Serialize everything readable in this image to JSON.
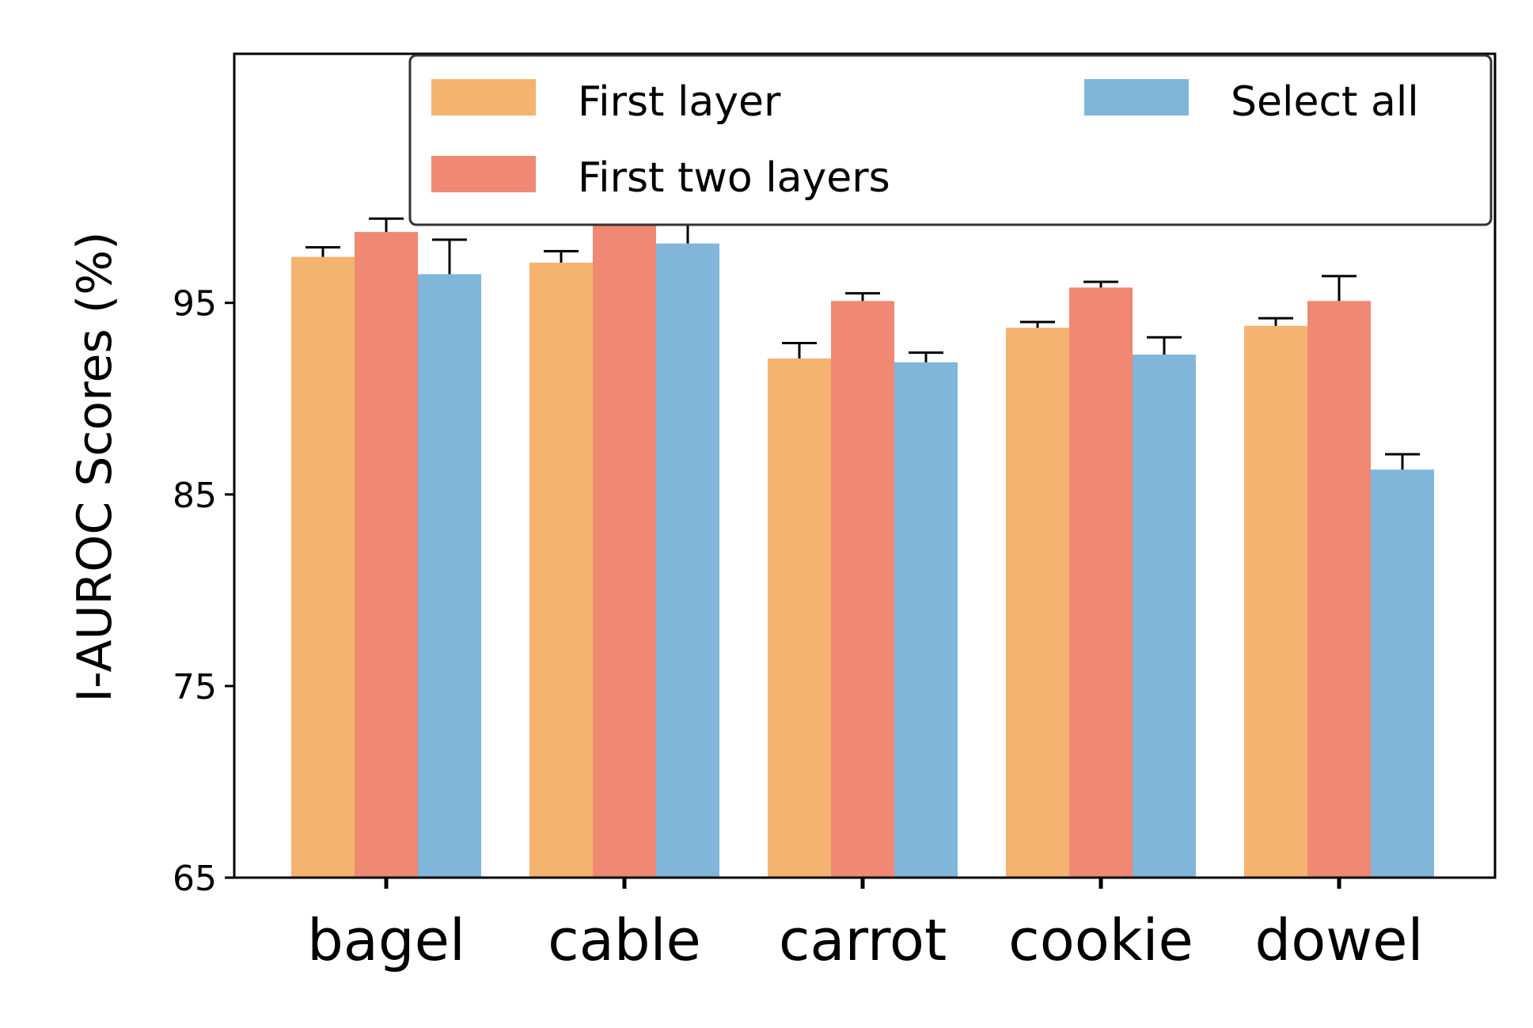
{
  "chart_data": {
    "type": "bar",
    "title": "",
    "xlabel": "",
    "ylabel": "I-AUROC Scores (%)",
    "ylim": [
      65,
      108
    ],
    "yticks": [
      65,
      75,
      85,
      95
    ],
    "grid": false,
    "legend_position": "top-right",
    "categories": [
      "bagel",
      "cable",
      "carrot",
      "cookie",
      "dowel"
    ],
    "series": [
      {
        "name": "First layer",
        "color": "#F4B36E",
        "values": [
          97.4,
          97.1,
          92.1,
          93.7,
          93.8
        ],
        "errors": [
          0.5,
          0.6,
          0.8,
          0.3,
          0.4
        ]
      },
      {
        "name": "First two layers",
        "color": "#F08873",
        "values": [
          98.7,
          99.8,
          95.1,
          95.8,
          95.1
        ],
        "errors": [
          0.7,
          0.2,
          0.4,
          0.3,
          1.3
        ]
      },
      {
        "name": "Select all",
        "color": "#80B6D9",
        "values": [
          96.5,
          98.1,
          91.9,
          92.3,
          86.3
        ],
        "errors": [
          1.8,
          1.4,
          0.5,
          0.9,
          0.8
        ]
      }
    ]
  }
}
